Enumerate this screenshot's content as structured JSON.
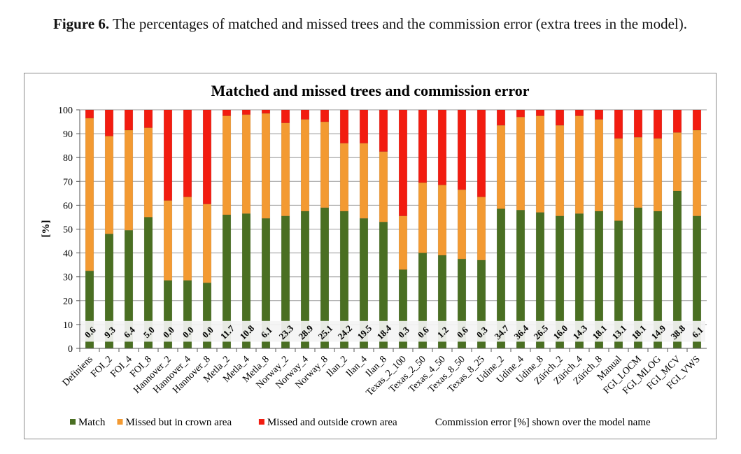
{
  "figure": {
    "label": "Figure 6.",
    "caption": "The percentages of matched and missed trees and the commission error (extra trees in the model)."
  },
  "chart_data": {
    "type": "bar",
    "stacked": true,
    "title": "Matched and missed trees and commission error",
    "ylabel": "[%]",
    "xlabel": "",
    "ylim": [
      0,
      100
    ],
    "yticks": [
      0,
      10,
      20,
      30,
      40,
      50,
      60,
      70,
      80,
      90,
      100
    ],
    "grid": true,
    "legend_position": "bottom",
    "categories": [
      "Definiens",
      "FOI_2",
      "FOI_4",
      "FOI_8",
      "Hannover_2",
      "Hannover_4",
      "Hannover_8",
      "Metla_2",
      "Metla_4",
      "Metla_8",
      "Norway_2",
      "Norway_4",
      "Norway_8",
      "Ilan_2",
      "Ilan_4",
      "Ilan_8",
      "Texas_2_100",
      "Texas_2_50",
      "Texas_4_50",
      "Texas_8_50",
      "Texas_8_25",
      "Udine_2",
      "Udine_4",
      "Udine_8",
      "Zürich_2",
      "Zürich_4",
      "Zürich_8",
      "Manual",
      "FGI_LOCM",
      "FGI_MLOG",
      "FGI_MCV",
      "FGI_VWS"
    ],
    "series": [
      {
        "name": "Match",
        "color": "#4a6f22",
        "values": [
          32.5,
          48,
          49.5,
          55,
          28.5,
          28.5,
          27.5,
          56,
          56.5,
          54.5,
          55.5,
          57.5,
          59,
          57.5,
          54.5,
          53,
          33,
          40,
          39,
          37.5,
          37,
          58.5,
          58,
          57,
          55.5,
          56.5,
          57.5,
          53.5,
          59,
          57.5,
          66,
          55.5
        ]
      },
      {
        "name": "Missed but in crown area",
        "color": "#f39a32",
        "values": [
          64,
          41,
          42,
          37.5,
          33.5,
          35,
          33,
          41.5,
          41.5,
          44,
          39,
          38.5,
          36,
          28.5,
          31.5,
          29.5,
          22.5,
          29.5,
          29.5,
          29,
          26.5,
          35,
          39,
          40.5,
          38,
          41,
          38.5,
          34.5,
          29.5,
          30.5,
          24.5,
          36
        ]
      },
      {
        "name": "Missed and outside crown area",
        "color": "#f21c10",
        "values": [
          3.5,
          11,
          8.5,
          7.5,
          38,
          36.5,
          39.5,
          2.5,
          2,
          1.5,
          5.5,
          4,
          5,
          14,
          14,
          17.5,
          44.5,
          30.5,
          31.5,
          33.5,
          36.5,
          6.5,
          3,
          2.5,
          6.5,
          2.5,
          4,
          12,
          11.5,
          12,
          9.5,
          8.5
        ]
      }
    ],
    "commission_error": [
      "0.6",
      "9.3",
      "6.4",
      "5.0",
      "0.0",
      "0.0",
      "0.0",
      "11.7",
      "10.8",
      "6.1",
      "23.3",
      "28.9",
      "25.1",
      "24.2",
      "19.5",
      "18.4",
      "0.3",
      "0.6",
      "1.2",
      "0.6",
      "0.3",
      "34.7",
      "36.4",
      "26.5",
      "16.0",
      "14.3",
      "18.1",
      "13.1",
      "18.1",
      "14.9",
      "38.8",
      "6.1"
    ],
    "legend_note": "Commission error [%]  shown over the model name"
  }
}
